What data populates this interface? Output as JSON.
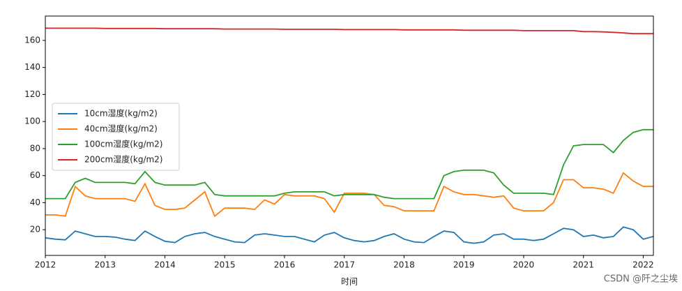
{
  "chart_data": {
    "type": "line",
    "x_label": "时间",
    "watermark": "CSDN @阡之尘埃",
    "x": [
      2012,
      2012.167,
      2012.333,
      2012.5,
      2012.667,
      2012.833,
      2013,
      2013.167,
      2013.333,
      2013.5,
      2013.667,
      2013.833,
      2014,
      2014.167,
      2014.333,
      2014.5,
      2014.667,
      2014.833,
      2015,
      2015.167,
      2015.333,
      2015.5,
      2015.667,
      2015.833,
      2016,
      2016.167,
      2016.333,
      2016.5,
      2016.667,
      2016.833,
      2017,
      2017.167,
      2017.333,
      2017.5,
      2017.667,
      2017.833,
      2018,
      2018.167,
      2018.333,
      2018.5,
      2018.667,
      2018.833,
      2019,
      2019.167,
      2019.333,
      2019.5,
      2019.667,
      2019.833,
      2020,
      2020.167,
      2020.333,
      2020.5,
      2020.667,
      2020.833,
      2021,
      2021.167,
      2021.333,
      2021.5,
      2021.667,
      2021.833,
      2022,
      2022.167
    ],
    "series": [
      {
        "name": "10cm湿度(kg/m2)",
        "color": "#1f77b4",
        "values": [
          14,
          13,
          12.5,
          19,
          17,
          15,
          15,
          14.5,
          13,
          12,
          19,
          15,
          11.5,
          10.5,
          15,
          17,
          18,
          15,
          13,
          11,
          10.5,
          16,
          17,
          16,
          15,
          15,
          13,
          11,
          16,
          18,
          14,
          12,
          11,
          12,
          15,
          17,
          13,
          11,
          10.5,
          15,
          19,
          18,
          11,
          10,
          11,
          16,
          17,
          13,
          13,
          12,
          13,
          17,
          21,
          20,
          15,
          16,
          14,
          15,
          22,
          20,
          13,
          15
        ]
      },
      {
        "name": "40cm湿度(kg/m2)",
        "color": "#ff7f0e",
        "values": [
          31,
          31,
          30,
          52,
          45,
          43,
          43,
          43,
          43,
          41,
          54,
          38,
          35,
          35,
          36,
          42,
          48,
          30,
          36,
          36,
          36,
          35,
          42,
          39,
          46,
          45,
          45,
          45,
          43,
          33,
          47,
          47,
          47,
          46,
          38,
          37,
          34,
          34,
          34,
          34,
          52,
          48,
          46,
          46,
          45,
          44,
          45,
          36,
          34,
          34,
          34,
          40,
          57,
          57,
          51,
          51,
          50,
          47,
          62,
          56,
          52,
          52
        ]
      },
      {
        "name": "100cm湿度(kg/m2)",
        "color": "#2ca02c",
        "values": [
          43,
          43,
          43,
          55,
          58,
          55,
          55,
          55,
          55,
          54,
          63,
          55,
          53,
          53,
          53,
          53,
          55,
          46,
          45,
          45,
          45,
          45,
          45,
          45,
          47,
          48,
          48,
          48,
          48,
          45,
          46,
          46,
          46,
          46,
          44,
          43,
          43,
          43,
          43,
          43,
          60,
          63,
          64,
          64,
          64,
          62,
          53,
          47,
          47,
          47,
          47,
          46,
          68,
          82,
          83,
          83,
          83,
          77,
          86,
          92,
          94,
          94
        ]
      },
      {
        "name": "200cm湿度(kg/m2)",
        "color": "#d62728",
        "values": [
          169,
          169,
          169,
          169,
          169,
          169,
          168.8,
          168.8,
          168.8,
          168.8,
          168.8,
          168.8,
          168.6,
          168.6,
          168.6,
          168.6,
          168.6,
          168.6,
          168.4,
          168.4,
          168.4,
          168.4,
          168.4,
          168.4,
          168.2,
          168.2,
          168.2,
          168.2,
          168.2,
          168.2,
          168,
          168,
          168,
          168,
          168,
          168,
          167.8,
          167.8,
          167.8,
          167.8,
          167.8,
          167.8,
          167.5,
          167.5,
          167.5,
          167.5,
          167.5,
          167.5,
          167.2,
          167.2,
          167.2,
          167.2,
          167.2,
          167.2,
          166.5,
          166.5,
          166.3,
          166,
          165.5,
          165,
          165,
          165
        ]
      }
    ],
    "xlim": [
      2012,
      2022.17
    ],
    "xticks": [
      2012,
      2013,
      2014,
      2015,
      2016,
      2017,
      2018,
      2019,
      2020,
      2021,
      2022
    ],
    "ylim": [
      1,
      178
    ],
    "yticks": [
      20,
      40,
      60,
      80,
      100,
      120,
      140,
      160
    ],
    "legend": "center left"
  }
}
